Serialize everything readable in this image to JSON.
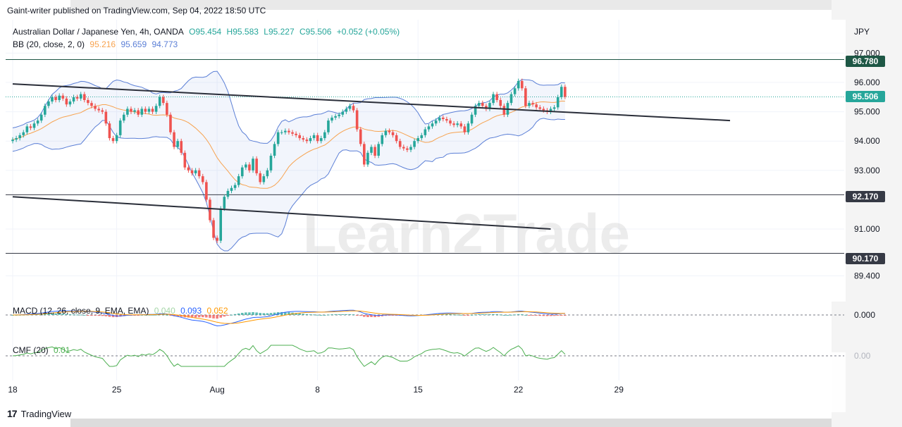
{
  "header": {
    "published": "Gaint-writer published on TradingView.com, Sep 04, 2022 18:50 UTC"
  },
  "legend": {
    "symbol": "Australian Dollar / Japanese Yen, 4h, OANDA",
    "open": "O95.454",
    "high": "H95.583",
    "low": "L95.227",
    "close": "C95.506",
    "change": "+0.052 (+0.05%)",
    "bb_label": "BB (20, close, 2, 0)",
    "bb_basis": "95.216",
    "bb_upper": "95.659",
    "bb_lower": "94.773",
    "macd_label": "MACD (12, 26, close, 9, EMA, EMA)",
    "macd_hist": "0.040",
    "macd_line": "0.093",
    "macd_signal": "0.052",
    "cmf_label": "CMF (20)",
    "cmf_value": "0.01"
  },
  "axis": {
    "currency": "JPY",
    "price_ticks": [
      "97.000",
      "96.000",
      "95.000",
      "94.000",
      "93.000",
      "91.000",
      "89.400"
    ],
    "price_tick_values": [
      97.0,
      96.0,
      95.0,
      94.0,
      93.0,
      91.0,
      89.4
    ],
    "date_ticks": [
      "18",
      "25",
      "Aug",
      "8",
      "15",
      "22",
      "29"
    ],
    "date_tick_index": [
      0,
      29,
      57,
      85,
      113,
      141,
      169
    ],
    "macd_zero": "0.000",
    "cmf_zero": "0.00"
  },
  "levels": {
    "resistance": {
      "label": "96.780",
      "value": 96.78,
      "color": "#1e5745"
    },
    "mid": {
      "label": "92.170",
      "value": 92.17,
      "color": "#363a45"
    },
    "support": {
      "label": "90.170",
      "value": 90.17,
      "color": "#363a45"
    },
    "last": {
      "label": "95.506",
      "value": 95.506,
      "color": "#26a69a"
    }
  },
  "watermark": "Learn2Trade",
  "footer": {
    "brand": "TradingView",
    "logo_mark": "17"
  },
  "colors": {
    "up": "#26a69a",
    "down": "#ef5350",
    "bb_band": "#5b7fd6",
    "bb_basis": "#f7a350",
    "macd": "#2962ff",
    "signal": "#ff9800",
    "cmf": "#4caf50",
    "trend": "#2a2e39"
  },
  "chart_data": {
    "type": "candlestick",
    "title": "Australian Dollar / Japanese Yen, 4h, OANDA",
    "ylim": [
      89.0,
      97.2
    ],
    "trendlines": [
      {
        "from": [
          0,
          95.95
        ],
        "to": [
          200,
          94.7
        ]
      },
      {
        "from": [
          0,
          92.1
        ],
        "to": [
          150,
          91.0
        ]
      }
    ],
    "closes": [
      94.05,
      94.1,
      94.2,
      94.3,
      94.5,
      94.45,
      94.6,
      94.7,
      94.9,
      95.2,
      95.35,
      95.5,
      95.4,
      95.55,
      95.45,
      95.25,
      95.35,
      95.5,
      95.45,
      95.6,
      95.4,
      95.3,
      95.2,
      95.1,
      95.05,
      95.0,
      94.6,
      94.1,
      94.0,
      94.2,
      94.7,
      94.9,
      95.1,
      95.0,
      95.05,
      94.9,
      95.1,
      95.0,
      95.1,
      95.0,
      95.2,
      95.5,
      95.3,
      94.9,
      94.3,
      93.8,
      94.0,
      93.6,
      93.1,
      93.0,
      92.9,
      93.0,
      92.8,
      92.6,
      92.0,
      91.3,
      90.7,
      90.6,
      91.7,
      92.1,
      92.3,
      92.4,
      92.5,
      92.8,
      93.1,
      93.2,
      93.0,
      93.4,
      92.9,
      92.6,
      92.8,
      93.0,
      93.5,
      93.9,
      94.3,
      94.3,
      94.35,
      94.3,
      94.25,
      94.2,
      94.1,
      94.05,
      94.0,
      94.1,
      94.2,
      94.0,
      94.1,
      94.3,
      94.7,
      94.8,
      94.85,
      94.9,
      95.0,
      95.1,
      95.2,
      95.05,
      94.4,
      93.9,
      93.2,
      93.6,
      93.8,
      93.5,
      93.9,
      94.2,
      94.35,
      94.3,
      94.2,
      94.0,
      93.8,
      93.75,
      93.7,
      93.8,
      94.0,
      94.1,
      94.2,
      94.4,
      94.5,
      94.6,
      94.7,
      94.8,
      94.75,
      94.7,
      94.6,
      94.55,
      94.6,
      94.5,
      94.3,
      94.6,
      94.9,
      95.2,
      95.3,
      95.2,
      95.1,
      95.3,
      95.6,
      95.4,
      95.2,
      94.9,
      95.3,
      95.6,
      95.8,
      96.05,
      95.8,
      95.2,
      95.3,
      95.25,
      95.15,
      95.1,
      95.05,
      95.0,
      95.1,
      95.15,
      95.5,
      95.85,
      95.51
    ]
  }
}
